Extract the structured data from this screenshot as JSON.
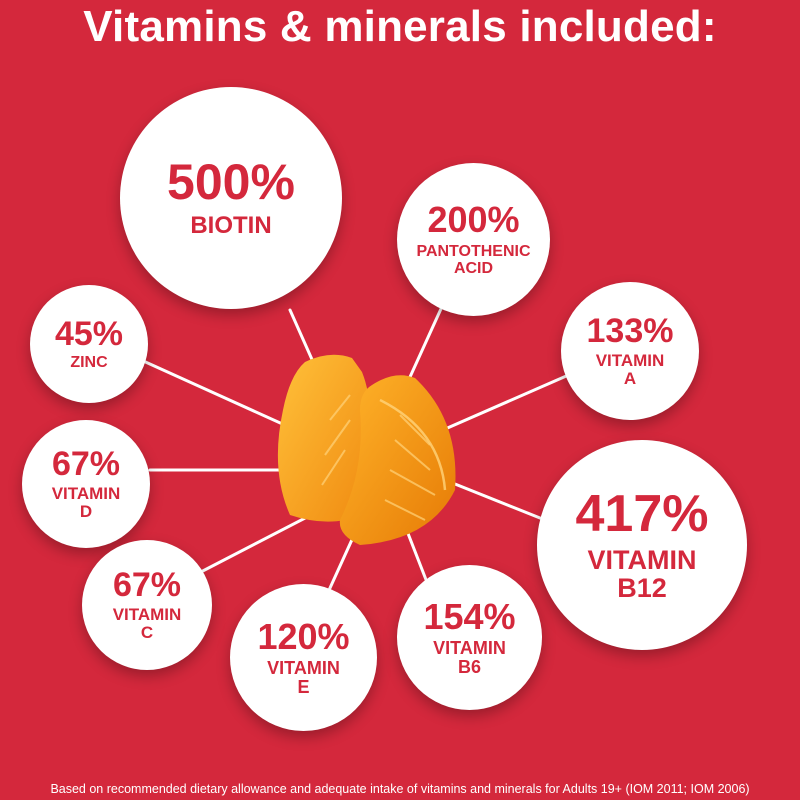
{
  "title": "Vitamins & minerals included:",
  "footnote": "Based on recommended dietary allowance and adequate intake of vitamins and minerals for Adults 19+ (IOM 2011; IOM 2006)",
  "nutrients": {
    "biotin": {
      "percent": "500%",
      "name": "BIOTIN"
    },
    "pantothenic": {
      "percent": "200%",
      "name": "PANTOTHENIC\nACID"
    },
    "vitamin_a": {
      "percent": "133%",
      "name": "VITAMIN\nA"
    },
    "zinc": {
      "percent": "45%",
      "name": "ZINC"
    },
    "vitamin_d": {
      "percent": "67%",
      "name": "VITAMIN\nD"
    },
    "vitamin_b12": {
      "percent": "417%",
      "name": "VITAMIN\nB12"
    },
    "vitamin_c": {
      "percent": "67%",
      "name": "VITAMIN\nC"
    },
    "vitamin_e": {
      "percent": "120%",
      "name": "VITAMIN\nE"
    },
    "vitamin_b6": {
      "percent": "154%",
      "name": "VITAMIN\nB6"
    }
  },
  "colors": {
    "background": "#d4283c",
    "circle": "#ffffff",
    "text_accent": "#d4283c",
    "gummy": "#f6a623"
  },
  "icons": {
    "product": "orange-slice-gummy-icon"
  }
}
